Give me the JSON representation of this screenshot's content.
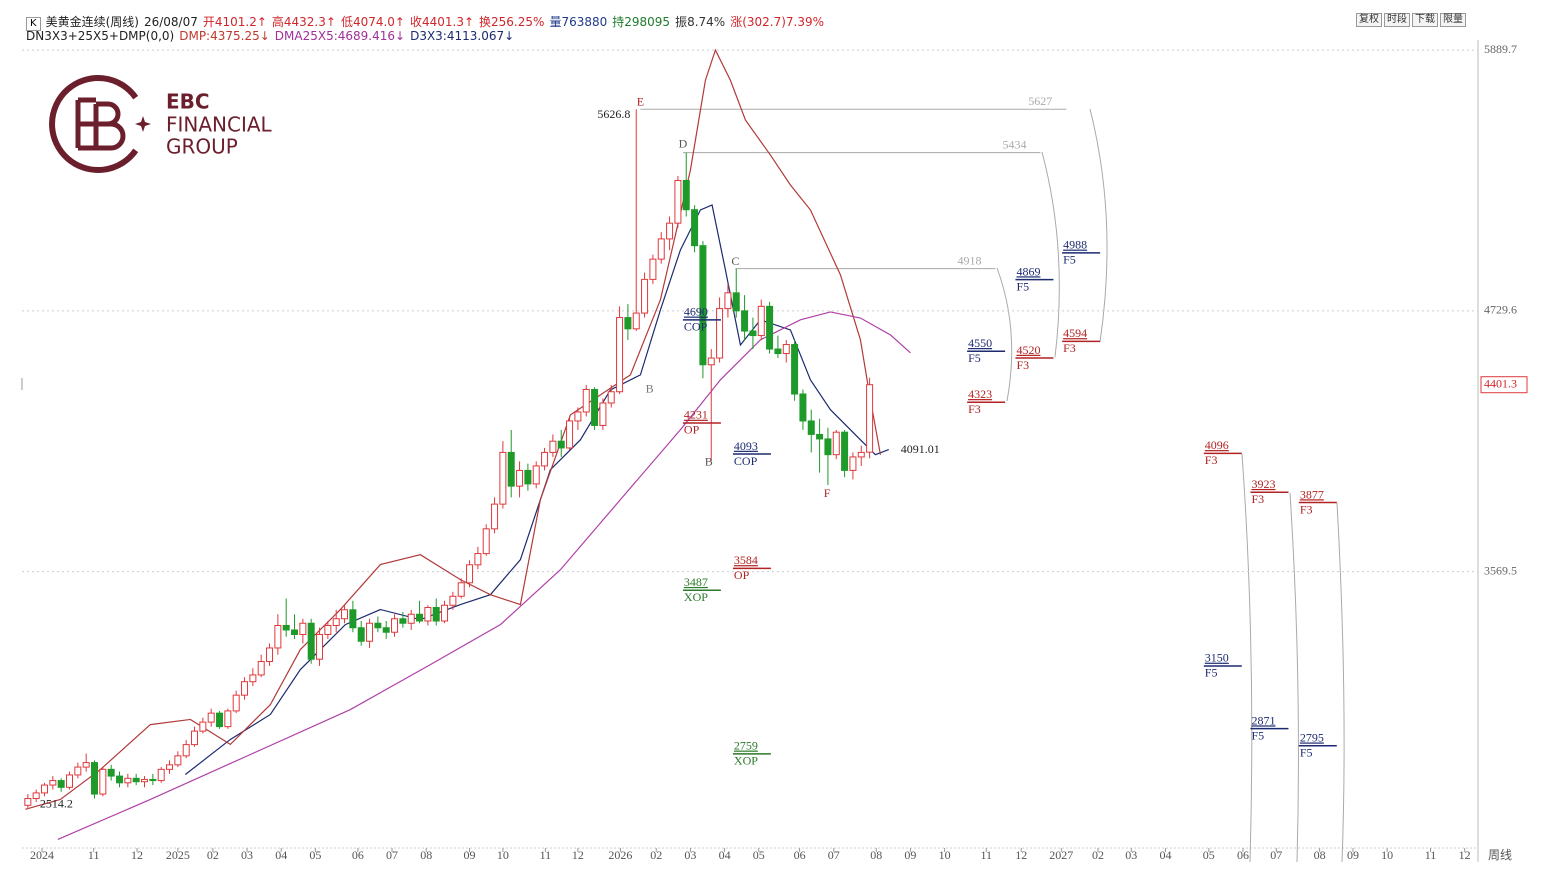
{
  "header": {
    "box": "K",
    "items": [
      {
        "text": "美黄金连续(周线)",
        "color": "#222222"
      },
      {
        "text": "26/08/07",
        "color": "#222222"
      },
      {
        "text": "开4101.2↑",
        "color": "#d0262b"
      },
      {
        "text": "高4432.3↑",
        "color": "#d0262b"
      },
      {
        "text": "低4074.0↑",
        "color": "#d0262b"
      },
      {
        "text": "收4401.3↑",
        "color": "#d0262b"
      },
      {
        "text": "换256.25%",
        "color": "#d0262b"
      },
      {
        "text": "量763880",
        "color": "#1f3a8a"
      },
      {
        "text": "持298095",
        "color": "#1e7a2a"
      },
      {
        "text": "振8.74%",
        "color": "#333333"
      },
      {
        "text": "涨(302.7)7.39%",
        "color": "#d0262b"
      }
    ]
  },
  "indicators": [
    {
      "text": "DN3X3+25X5+DMP(0,0)",
      "color": "#222222"
    },
    {
      "text": "DMP:4375.25↓",
      "color": "#c0392b"
    },
    {
      "text": "DMA25X5:4689.416↓",
      "color": "#a0309a"
    },
    {
      "text": "D3X3:4113.067↓",
      "color": "#1c2a70"
    }
  ],
  "toolbar": [
    "复权",
    "时段",
    "下载",
    "限量"
  ],
  "logo": [
    "EBC",
    "FINANCIAL",
    "GROUP"
  ],
  "chart_data": {
    "type": "candlestick",
    "x": [
      0,
      1,
      2,
      3,
      4,
      5,
      6,
      7,
      8,
      9,
      10,
      11,
      12,
      13,
      14,
      15,
      16,
      17,
      18,
      19,
      20,
      21,
      22,
      23,
      24,
      25,
      26,
      27,
      28,
      29,
      30,
      31,
      32,
      33,
      34,
      35,
      36,
      37,
      38,
      39,
      40,
      41,
      42,
      43,
      44,
      45,
      46,
      47,
      48,
      49,
      50,
      51,
      52,
      53,
      54,
      55,
      56,
      57,
      58,
      59,
      60,
      61,
      62,
      63,
      64,
      65,
      66,
      67,
      68,
      69,
      70,
      71,
      72,
      73,
      74,
      75,
      76,
      77,
      78,
      79,
      80,
      81,
      82,
      83,
      84,
      85,
      86,
      87,
      88,
      89,
      90,
      91,
      92,
      93,
      94,
      95,
      96,
      97,
      98,
      99,
      100,
      101
    ],
    "open": [
      2530,
      2560,
      2585,
      2620,
      2640,
      2610,
      2665,
      2700,
      2720,
      2580,
      2690,
      2660,
      2630,
      2650,
      2635,
      2645,
      2640,
      2690,
      2710,
      2750,
      2800,
      2860,
      2900,
      2940,
      2880,
      2950,
      3020,
      3080,
      3110,
      3170,
      3230,
      3330,
      3310,
      3290,
      3340,
      3180,
      3290,
      3330,
      3360,
      3400,
      3320,
      3260,
      3340,
      3320,
      3300,
      3360,
      3340,
      3380,
      3350,
      3410,
      3350,
      3420,
      3460,
      3520,
      3600,
      3650,
      3760,
      3870,
      4100,
      3950,
      4020,
      3960,
      4040,
      4100,
      4150,
      4120,
      4240,
      4280,
      4380,
      4220,
      4320,
      4370,
      4700,
      4650,
      4720,
      4870,
      4960,
      5050,
      5120,
      5310,
      5180,
      5020,
      4490,
      4520,
      4740,
      4810,
      4730,
      4640,
      4620,
      4750,
      4560,
      4540,
      4580,
      4360,
      4240,
      4180,
      4160,
      4090,
      4190,
      4020,
      4080,
      4101.2
    ],
    "high": [
      2580,
      2600,
      2630,
      2660,
      2650,
      2680,
      2720,
      2760,
      2730,
      2700,
      2710,
      2680,
      2670,
      2670,
      2660,
      2670,
      2700,
      2730,
      2770,
      2820,
      2880,
      2920,
      2960,
      2950,
      2960,
      3040,
      3100,
      3140,
      3200,
      3250,
      3380,
      3450,
      3380,
      3360,
      3360,
      3320,
      3350,
      3400,
      3420,
      3440,
      3350,
      3360,
      3370,
      3350,
      3380,
      3390,
      3400,
      3440,
      3420,
      3450,
      3440,
      3480,
      3540,
      3620,
      3680,
      3780,
      3900,
      4150,
      4200,
      4060,
      4050,
      4060,
      4120,
      4180,
      4200,
      4260,
      4300,
      4400,
      4390,
      4340,
      4400,
      4750,
      4760,
      5626.8,
      4900,
      4980,
      5080,
      5150,
      5330,
      5434,
      5200,
      5040,
      4560,
      4790,
      4850,
      4918,
      4800,
      4700,
      4780,
      4770,
      4620,
      4600,
      4600,
      4380,
      4290,
      4250,
      4210,
      4200,
      4200,
      4100,
      4130,
      4432.3
    ],
    "low": [
      2514.2,
      2545,
      2570,
      2600,
      2590,
      2600,
      2650,
      2680,
      2560,
      2570,
      2640,
      2610,
      2610,
      2620,
      2610,
      2620,
      2630,
      2670,
      2700,
      2740,
      2790,
      2850,
      2880,
      2870,
      2870,
      2940,
      3000,
      3060,
      3100,
      3150,
      3200,
      3280,
      3270,
      3250,
      3160,
      3150,
      3270,
      3300,
      3340,
      3300,
      3240,
      3230,
      3300,
      3270,
      3280,
      3320,
      3310,
      3340,
      3330,
      3330,
      3340,
      3400,
      3450,
      3500,
      3580,
      3640,
      3740,
      3850,
      3900,
      3900,
      3930,
      3940,
      4020,
      4080,
      4080,
      4110,
      4200,
      4260,
      4200,
      4200,
      4300,
      4360,
      4600,
      4640,
      4700,
      4850,
      4940,
      5000,
      5100,
      5150,
      4990,
      4430,
      4060,
      4500,
      4700,
      4700,
      4600,
      4560,
      4600,
      4540,
      4520,
      4500,
      4330,
      4200,
      4100,
      4010,
      3955,
      4070,
      3990,
      3980,
      4040,
      4074.0
    ],
    "close": [
      2560,
      2585,
      2620,
      2640,
      2610,
      2665,
      2700,
      2720,
      2580,
      2690,
      2660,
      2630,
      2650,
      2635,
      2645,
      2640,
      2690,
      2710,
      2750,
      2800,
      2860,
      2900,
      2940,
      2880,
      2950,
      3020,
      3080,
      3110,
      3170,
      3230,
      3330,
      3310,
      3290,
      3340,
      3180,
      3290,
      3330,
      3360,
      3400,
      3320,
      3260,
      3340,
      3320,
      3300,
      3360,
      3340,
      3380,
      3350,
      3410,
      3350,
      3420,
      3460,
      3520,
      3600,
      3650,
      3760,
      3870,
      4100,
      3950,
      4020,
      3960,
      4040,
      4100,
      4150,
      4120,
      4240,
      4280,
      4380,
      4220,
      4320,
      4370,
      4700,
      4650,
      4720,
      4870,
      4960,
      5050,
      5120,
      5310,
      5180,
      5020,
      4490,
      4520,
      4740,
      4810,
      4730,
      4640,
      4620,
      4750,
      4560,
      4540,
      4580,
      4360,
      4240,
      4180,
      4160,
      4090,
      4190,
      4020,
      4080,
      4100,
      4401.3
    ],
    "up_color": "#e0383b",
    "down_color": "#1e9a2a",
    "lines": [
      {
        "color": "#1c2a70",
        "x": [
          18.9,
          24.3,
          29.1,
          32.7,
          35.1,
          38.1,
          42.3,
          47.1,
          51.9,
          55.5,
          59.1,
          62.7,
          66.3,
          69.9,
          73.5,
          75.9,
          78.3,
          80.7,
          82.1,
          83.7,
          85.5,
          87.9,
          91.5,
          93.9,
          96.3,
          99.9,
          101.7,
          103.3
        ],
        "values": [
          2667,
          2823,
          2934,
          3134,
          3223,
          3334,
          3401,
          3356,
          3423,
          3467,
          3623,
          4023,
          4156,
          4378,
          4445,
          4734,
          5001,
          5179,
          5201,
          4912,
          4578,
          4690,
          4645,
          4423,
          4290,
          4156,
          4090,
          4113
        ]
      },
      {
        "color": "#b23a3a",
        "x": [
          -0.3,
          3.9,
          8.7,
          14.7,
          19.5,
          24.3,
          29.1,
          32.7,
          37.5,
          42.3,
          47.1,
          51.9,
          55.5,
          59.1,
          61.5,
          65.1,
          68.7,
          72.3,
          75.9,
          79.5,
          81.3,
          82.5,
          84.3,
          86.1,
          89.1,
          91.5,
          93.9,
          97.5,
          99.9,
          101.1,
          102.3
        ],
        "values": [
          2512,
          2556,
          2689,
          2889,
          2912,
          2801,
          2978,
          3223,
          3401,
          3601,
          3645,
          3534,
          3467,
          3423,
          3890,
          4267,
          4356,
          4445,
          4779,
          5356,
          5756,
          5890,
          5756,
          5579,
          5423,
          5290,
          5179,
          4890,
          4601,
          4334,
          4090
        ]
      },
      {
        "color": "#b040a8",
        "x": [
          3.6,
          14.7,
          26.7,
          38.7,
          48.3,
          56.7,
          63.9,
          71.1,
          78.3,
          83.1,
          87.9,
          92.7,
          96.3,
          99.9,
          103.5,
          105.9
        ],
        "values": [
          2378,
          2556,
          2756,
          2956,
          3156,
          3334,
          3578,
          3890,
          4201,
          4423,
          4601,
          4690,
          4725,
          4698,
          4623,
          4543
        ]
      }
    ],
    "projections": [
      {
        "value": 5627,
        "x": [
          73.5,
          124.6
        ]
      },
      {
        "value": 5434,
        "x": [
          78.6,
          121.5
        ]
      },
      {
        "value": 4918,
        "x": [
          84.9,
          116.1
        ]
      }
    ],
    "projection_color": "#aaaaaa",
    "levels": [
      {
        "value": 4988,
        "tag": "F5",
        "x": 124.1,
        "color": "#1c2a70"
      },
      {
        "value": 4869,
        "tag": "F5",
        "x": 118.5,
        "color": "#1c2a70"
      },
      {
        "value": 4594,
        "tag": "F3",
        "x": 124.1,
        "color": "#b22222"
      },
      {
        "value": 4520,
        "tag": "F3",
        "x": 118.5,
        "color": "#b22222"
      },
      {
        "value": 4550,
        "tag": "F5",
        "x": 112.7,
        "color": "#1c2a70"
      },
      {
        "value": 4323,
        "tag": "F3",
        "x": 112.7,
        "color": "#b22222"
      },
      {
        "value": 4096,
        "tag": "F3",
        "x": 141.1,
        "color": "#b22222"
      },
      {
        "value": 3923,
        "tag": "F3",
        "x": 146.7,
        "color": "#b22222"
      },
      {
        "value": 3877,
        "tag": "F3",
        "x": 152.5,
        "color": "#b22222"
      },
      {
        "value": 3150,
        "tag": "F5",
        "x": 141.1,
        "color": "#1c2a70"
      },
      {
        "value": 2871,
        "tag": "F5",
        "x": 146.7,
        "color": "#1c2a70"
      },
      {
        "value": 2795,
        "tag": "F5",
        "x": 152.5,
        "color": "#1c2a70"
      },
      {
        "value": 4690,
        "tag": "COP",
        "x": 78.6,
        "color": "#1c2a70"
      },
      {
        "value": 4231,
        "tag": "OP",
        "x": 78.6,
        "color": "#b22222"
      },
      {
        "value": 4093,
        "tag": "COP",
        "x": 84.6,
        "color": "#1c2a70"
      },
      {
        "value": 3584,
        "tag": "OP",
        "x": 84.6,
        "color": "#b22222"
      },
      {
        "value": 3487,
        "tag": "XOP",
        "x": 78.6,
        "color": "#2a7a2a"
      },
      {
        "value": 2759,
        "tag": "XOP",
        "x": 84.6,
        "color": "#2a7a2a"
      }
    ],
    "waves": [
      {
        "text": "E",
        "x": 73.5,
        "y": 5655,
        "color": "#b22222"
      },
      {
        "text": "D",
        "x": 78.6,
        "y": 5468,
        "color": "#555555"
      },
      {
        "text": "C",
        "x": 84.9,
        "y": 4947,
        "color": "#555555"
      },
      {
        "text": "B",
        "x": 74.6,
        "y": 4378,
        "color": "#777777"
      },
      {
        "text": "B",
        "x": 81.7,
        "y": 4053,
        "color": "#555555"
      },
      {
        "text": "F",
        "x": 95.9,
        "y": 3915,
        "color": "#b22222"
      }
    ],
    "annotations": [
      {
        "value": 5626.8,
        "x": 73.5
      },
      {
        "value": 2514.2,
        "x": 0
      },
      {
        "value": 4091.01,
        "x": 103.3
      }
    ],
    "last_price": 4401.3,
    "xlim": [
      -0.7,
      174
    ],
    "ylim": [
      2340,
      5935
    ],
    "yticks": [
      5889.7,
      4729.6,
      3569.5
    ],
    "xticks": [
      {
        "value": 1.7,
        "label": "2024"
      },
      {
        "value": 7.9,
        "label": "11"
      },
      {
        "value": 13.1,
        "label": "12"
      },
      {
        "value": 18.0,
        "label": "2025"
      },
      {
        "value": 22.2,
        "label": "02"
      },
      {
        "value": 26.3,
        "label": "03"
      },
      {
        "value": 30.4,
        "label": "04"
      },
      {
        "value": 34.5,
        "label": "05"
      },
      {
        "value": 39.6,
        "label": "06"
      },
      {
        "value": 43.7,
        "label": "07"
      },
      {
        "value": 47.8,
        "label": "08"
      },
      {
        "value": 53.0,
        "label": "09"
      },
      {
        "value": 57.0,
        "label": "10"
      },
      {
        "value": 62.1,
        "label": "11"
      },
      {
        "value": 66.0,
        "label": "12"
      },
      {
        "value": 71.1,
        "label": "2026"
      },
      {
        "value": 75.4,
        "label": "02"
      },
      {
        "value": 79.5,
        "label": "03"
      },
      {
        "value": 83.6,
        "label": "04"
      },
      {
        "value": 87.7,
        "label": "05"
      },
      {
        "value": 92.6,
        "label": "06"
      },
      {
        "value": 96.7,
        "label": "07"
      },
      {
        "value": 101.8,
        "label": "08"
      },
      {
        "value": 105.9,
        "label": "09"
      },
      {
        "value": 110.0,
        "label": "10"
      },
      {
        "value": 115.0,
        "label": "11"
      },
      {
        "value": 119.2,
        "label": "12"
      },
      {
        "value": 124.0,
        "label": "2027"
      },
      {
        "value": 128.4,
        "label": "02"
      },
      {
        "value": 132.4,
        "label": "03"
      },
      {
        "value": 136.5,
        "label": "04"
      },
      {
        "value": 141.7,
        "label": "05"
      },
      {
        "value": 145.8,
        "label": "06"
      },
      {
        "value": 149.8,
        "label": "07"
      },
      {
        "value": 155.0,
        "label": "08"
      },
      {
        "value": 159.0,
        "label": "09"
      },
      {
        "value": 163.1,
        "label": "10"
      },
      {
        "value": 168.3,
        "label": "11"
      },
      {
        "value": 172.4,
        "label": "12"
      }
    ],
    "x_label": "周线",
    "grid": true
  }
}
